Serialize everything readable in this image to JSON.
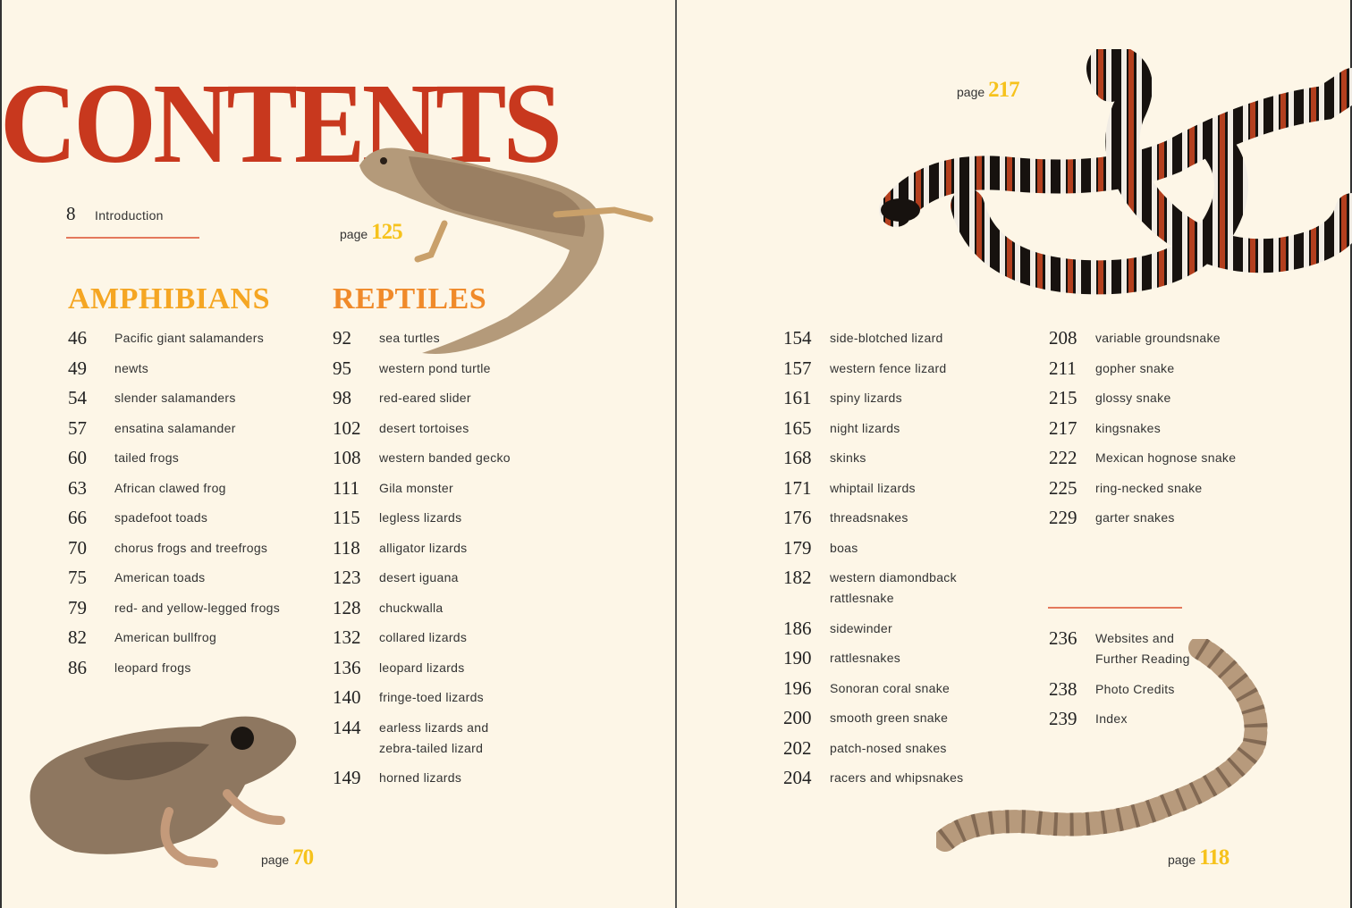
{
  "title": "CONTENTS",
  "intro": {
    "num": "8",
    "label": "Introduction"
  },
  "sections": {
    "amphibians": {
      "heading": "AMPHIBIANS",
      "color": "#f5a623",
      "entries": [
        {
          "num": "46",
          "label": [
            "Pacific giant salamanders"
          ]
        },
        {
          "num": "49",
          "label": [
            "newts"
          ]
        },
        {
          "num": "54",
          "label": [
            "slender salamanders"
          ]
        },
        {
          "num": "57",
          "label": [
            "ensatina salamander"
          ]
        },
        {
          "num": "60",
          "label": [
            "tailed frogs"
          ]
        },
        {
          "num": "63",
          "label": [
            "African clawed frog"
          ]
        },
        {
          "num": "66",
          "label": [
            "spadefoot toads"
          ]
        },
        {
          "num": "70",
          "label": [
            "chorus frogs and treefrogs"
          ]
        },
        {
          "num": "75",
          "label": [
            "American toads"
          ]
        },
        {
          "num": "79",
          "label": [
            "red- and yellow-legged frogs"
          ]
        },
        {
          "num": "82",
          "label": [
            "American bullfrog"
          ]
        },
        {
          "num": "86",
          "label": [
            "leopard frogs"
          ]
        }
      ]
    },
    "reptiles": {
      "heading": "REPTILES",
      "color": "#f08a2a",
      "entries": [
        {
          "num": "92",
          "label": [
            "sea turtles"
          ]
        },
        {
          "num": "95",
          "label": [
            "western pond turtle"
          ]
        },
        {
          "num": "98",
          "label": [
            "red-eared slider"
          ]
        },
        {
          "num": "102",
          "label": [
            "desert tortoises"
          ]
        },
        {
          "num": "108",
          "label": [
            "western banded gecko"
          ]
        },
        {
          "num": "111",
          "label": [
            "Gila monster"
          ]
        },
        {
          "num": "115",
          "label": [
            "legless lizards"
          ]
        },
        {
          "num": "118",
          "label": [
            "alligator lizards"
          ]
        },
        {
          "num": "123",
          "label": [
            "desert iguana"
          ]
        },
        {
          "num": "128",
          "label": [
            "chuckwalla"
          ]
        },
        {
          "num": "132",
          "label": [
            "collared lizards"
          ]
        },
        {
          "num": "136",
          "label": [
            "leopard lizards"
          ]
        },
        {
          "num": "140",
          "label": [
            "fringe-toed lizards"
          ]
        },
        {
          "num": "144",
          "label": [
            "earless lizards and",
            "zebra-tailed lizard"
          ]
        },
        {
          "num": "149",
          "label": [
            "horned lizards"
          ]
        }
      ]
    },
    "reptiles_cont_1": {
      "entries": [
        {
          "num": "154",
          "label": [
            "side-blotched lizard"
          ]
        },
        {
          "num": "157",
          "label": [
            "western fence lizard"
          ]
        },
        {
          "num": "161",
          "label": [
            "spiny lizards"
          ]
        },
        {
          "num": "165",
          "label": [
            "night lizards"
          ]
        },
        {
          "num": "168",
          "label": [
            "skinks"
          ]
        },
        {
          "num": "171",
          "label": [
            "whiptail lizards"
          ]
        },
        {
          "num": "176",
          "label": [
            "threadsnakes"
          ]
        },
        {
          "num": "179",
          "label": [
            "boas"
          ]
        },
        {
          "num": "182",
          "label": [
            "western diamondback",
            "rattlesnake"
          ]
        },
        {
          "num": "186",
          "label": [
            "sidewinder"
          ]
        },
        {
          "num": "190",
          "label": [
            "rattlesnakes"
          ]
        },
        {
          "num": "196",
          "label": [
            "Sonoran coral snake"
          ]
        },
        {
          "num": "200",
          "label": [
            "smooth green snake"
          ]
        },
        {
          "num": "202",
          "label": [
            "patch-nosed snakes"
          ]
        },
        {
          "num": "204",
          "label": [
            "racers and whipsnakes"
          ]
        }
      ]
    },
    "reptiles_cont_2": {
      "entries": [
        {
          "num": "208",
          "label": [
            "variable groundsnake"
          ]
        },
        {
          "num": "211",
          "label": [
            "gopher snake"
          ]
        },
        {
          "num": "215",
          "label": [
            "glossy snake"
          ]
        },
        {
          "num": "217",
          "label": [
            "kingsnakes"
          ]
        },
        {
          "num": "222",
          "label": [
            "Mexican hognose snake"
          ]
        },
        {
          "num": "225",
          "label": [
            "ring-necked snake"
          ]
        },
        {
          "num": "229",
          "label": [
            "garter snakes"
          ]
        }
      ]
    },
    "back_matter": {
      "entries": [
        {
          "num": "236",
          "label": [
            "Websites and",
            "Further Reading"
          ]
        },
        {
          "num": "238",
          "label": [
            "Photo Credits"
          ]
        },
        {
          "num": "239",
          "label": [
            "Index"
          ]
        }
      ]
    }
  },
  "photo_captions": {
    "lizard": {
      "word": "page",
      "num": "125"
    },
    "frog": {
      "word": "page",
      "num": "70"
    },
    "kingsnake": {
      "word": "page",
      "num": "217"
    },
    "legless_lizard": {
      "word": "page",
      "num": "118"
    }
  },
  "colors": {
    "title": "#c8381e",
    "page_bg": "#fdf6e7",
    "rule": "#e4785c",
    "caption_num": "#f6c21c"
  }
}
